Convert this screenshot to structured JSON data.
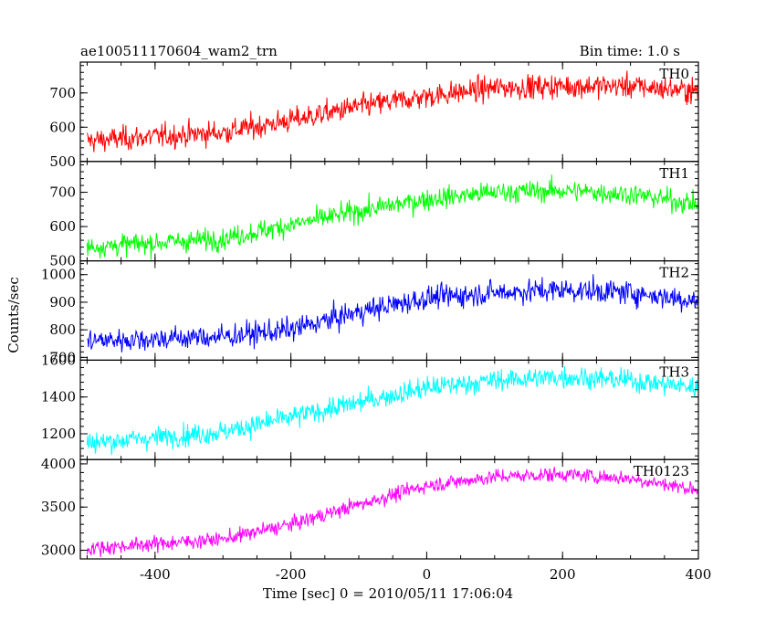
{
  "header": {
    "left_title": "ae100511170604_wam2_trn",
    "right_title": "Bin time: 1.0 s"
  },
  "axes": {
    "xlabel": "Time [sec] 0 = 2010/05/11 17:06:04",
    "ylabel": "Counts/sec"
  },
  "chart_data": {
    "type": "line",
    "x_range": [
      -510,
      400
    ],
    "x_ticks": [
      -400,
      -200,
      0,
      200,
      400
    ],
    "bin_time_s": 1.0,
    "panels": [
      {
        "name": "TH0",
        "color": "#ff0000",
        "ylim": [
          500,
          790
        ],
        "yticks": [
          500,
          600,
          700
        ],
        "trend": [
          [
            -500,
            560
          ],
          [
            -300,
            585
          ],
          [
            -200,
            620
          ],
          [
            -100,
            660
          ],
          [
            0,
            690
          ],
          [
            100,
            715
          ],
          [
            200,
            720
          ],
          [
            300,
            720
          ],
          [
            400,
            705
          ]
        ],
        "noise": 45
      },
      {
        "name": "TH1",
        "color": "#00ff00",
        "ylim": [
          500,
          790
        ],
        "yticks": [
          500,
          600,
          700
        ],
        "trend": [
          [
            -500,
            540
          ],
          [
            -300,
            565
          ],
          [
            -200,
            605
          ],
          [
            -100,
            645
          ],
          [
            0,
            680
          ],
          [
            100,
            700
          ],
          [
            200,
            705
          ],
          [
            300,
            695
          ],
          [
            400,
            665
          ]
        ],
        "noise": 40
      },
      {
        "name": "TH2",
        "color": "#0000ff",
        "ylim": [
          690,
          1050
        ],
        "yticks": [
          700,
          800,
          900,
          1000
        ],
        "trend": [
          [
            -500,
            760
          ],
          [
            -300,
            775
          ],
          [
            -200,
            800
          ],
          [
            -100,
            865
          ],
          [
            0,
            915
          ],
          [
            100,
            935
          ],
          [
            200,
            945
          ],
          [
            300,
            935
          ],
          [
            400,
            905
          ]
        ],
        "noise": 55
      },
      {
        "name": "TH3",
        "color": "#00ffff",
        "ylim": [
          1060,
          1600
        ],
        "yticks": [
          1200,
          1400,
          1600
        ],
        "trend": [
          [
            -500,
            1150
          ],
          [
            -300,
            1210
          ],
          [
            -200,
            1290
          ],
          [
            -100,
            1370
          ],
          [
            0,
            1450
          ],
          [
            100,
            1490
          ],
          [
            200,
            1510
          ],
          [
            300,
            1490
          ],
          [
            400,
            1450
          ]
        ],
        "noise": 75
      },
      {
        "name": "TH0123",
        "color": "#ff00ff",
        "ylim": [
          2900,
          4050
        ],
        "yticks": [
          3000,
          3500,
          4000
        ],
        "trend": [
          [
            -500,
            3020
          ],
          [
            -300,
            3130
          ],
          [
            -200,
            3300
          ],
          [
            -100,
            3530
          ],
          [
            0,
            3750
          ],
          [
            100,
            3850
          ],
          [
            200,
            3880
          ],
          [
            300,
            3830
          ],
          [
            400,
            3700
          ]
        ],
        "noise": 110
      }
    ]
  }
}
